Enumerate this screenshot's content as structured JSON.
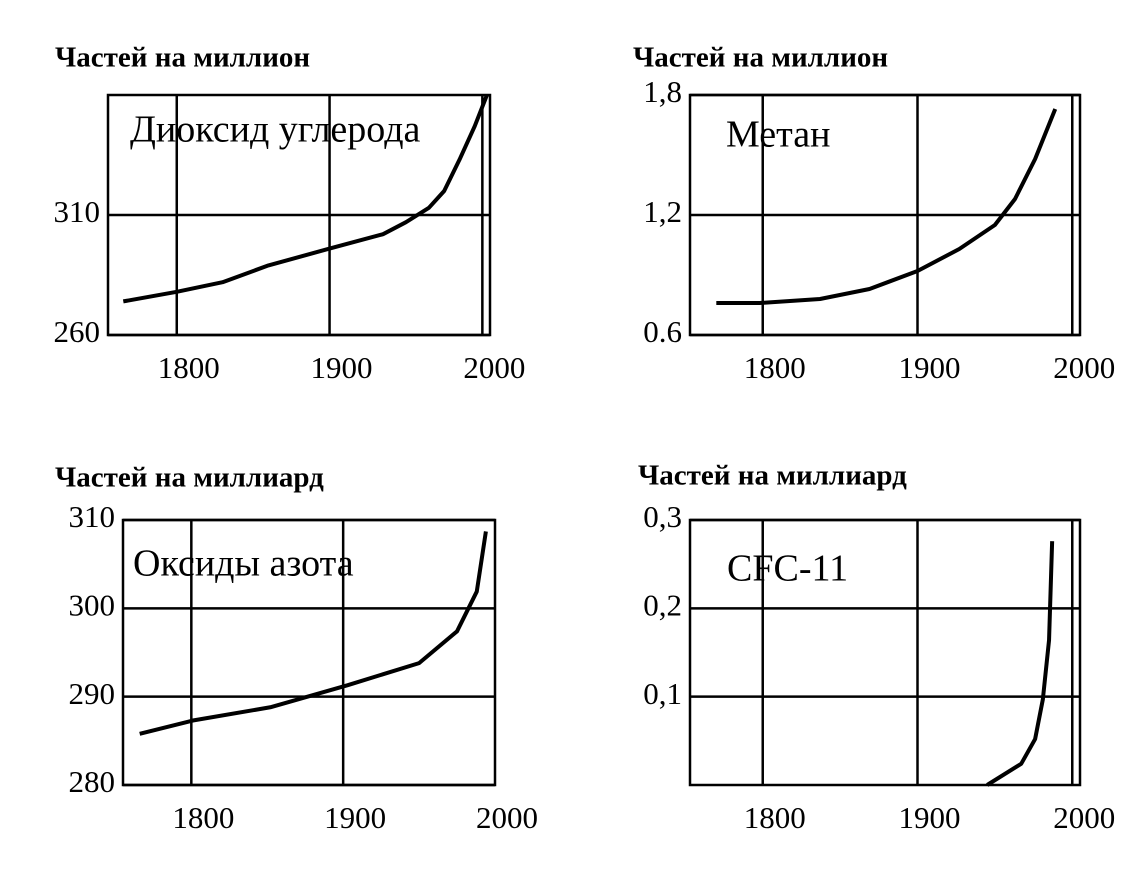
{
  "chart_data": [
    {
      "type": "line",
      "ylabel": "Частей на миллион",
      "annotation": "Диоксид углерода",
      "x": [
        1765,
        1800,
        1830,
        1860,
        1900,
        1935,
        1950,
        1965,
        1975,
        1985,
        1995,
        2003
      ],
      "values": [
        274,
        278,
        282,
        289,
        296,
        302,
        307,
        313,
        320,
        333,
        347,
        360
      ],
      "xlim": [
        1755,
        2005
      ],
      "ylim": [
        260,
        360
      ],
      "xticks": [
        1800,
        1900,
        2000
      ],
      "yticks": [
        260,
        310
      ],
      "grid": true,
      "color": "#000000"
    },
    {
      "type": "line",
      "ylabel": "Частей на миллион",
      "annotation": "Метан",
      "x": [
        1770,
        1798,
        1837,
        1869,
        1900,
        1927,
        1950,
        1963,
        1976,
        1989
      ],
      "values": [
        0.76,
        0.76,
        0.78,
        0.83,
        0.92,
        1.03,
        1.15,
        1.28,
        1.48,
        1.73
      ],
      "xlim": [
        1753,
        2005
      ],
      "ylim": [
        0.6,
        1.8
      ],
      "xticks": [
        1800,
        1900,
        2000
      ],
      "yticks": [
        {
          "value": 0.6,
          "label": "0.6"
        },
        {
          "value": 1.2,
          "label": "1,2"
        },
        {
          "value": 1.8,
          "label": "1,8"
        }
      ],
      "grid": true,
      "color": "#000000"
    },
    {
      "type": "line",
      "ylabel": "Частей на миллиард",
      "annotation": "Оксиды азота",
      "x": [
        1766,
        1801,
        1852,
        1903,
        1950,
        1975,
        1988,
        1994
      ],
      "values": [
        285.8,
        287.3,
        288.8,
        291.3,
        293.8,
        297.4,
        301.9,
        308.7
      ],
      "xlim": [
        1755,
        2000
      ],
      "ylim": [
        280,
        310
      ],
      "xticks": [
        1800,
        1900,
        2000
      ],
      "yticks": [
        280,
        290,
        300,
        310
      ],
      "grid": true,
      "color": "#000000"
    },
    {
      "type": "line",
      "ylabel": "Частей на миллиард",
      "annotation": "CFC-11",
      "x": [
        1945,
        1967,
        1976,
        1981,
        1985,
        1987
      ],
      "values": [
        0,
        0.024,
        0.052,
        0.097,
        0.164,
        0.276
      ],
      "xlim": [
        1753,
        2005
      ],
      "ylim": [
        0,
        0.3
      ],
      "xticks": [
        1800,
        1900,
        2000
      ],
      "yticks": [
        {
          "value": 0.1,
          "label": "0,1"
        },
        {
          "value": 0.2,
          "label": "0,2"
        },
        {
          "value": 0.3,
          "label": "0,3"
        }
      ],
      "grid": true,
      "color": "#000000"
    }
  ]
}
